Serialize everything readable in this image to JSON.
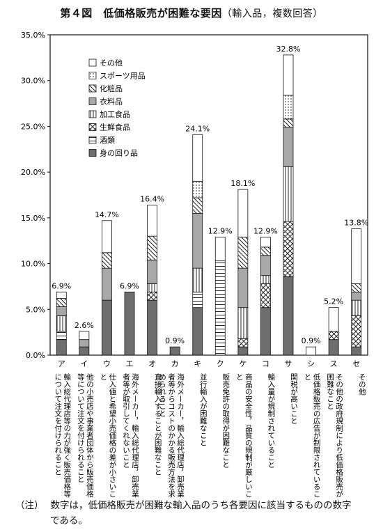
{
  "title": "第４図　低価格販売が困難な要因",
  "title_suffix": "（輸入品，複数回答）",
  "note": {
    "label": "（注）",
    "line1": "数字は，低価格販売が困難な輸入品のうち各要因に該当するものの数字",
    "line2": "である。"
  },
  "chart_data": {
    "type": "bar",
    "stacked": true,
    "title": "第４図　低価格販売が困難な要因（輸入品，複数回答）",
    "ylim": [
      0,
      35
    ],
    "yticks": [
      0,
      5,
      10,
      15,
      20,
      25,
      30,
      35
    ],
    "ytick_labels": [
      "0.0%",
      "5.0%",
      "10.0%",
      "15.0%",
      "20.0%",
      "25.0%",
      "30.0%",
      "35.0%"
    ],
    "grid": false,
    "legend_placement": "top-left",
    "categories": [
      "ア",
      "イ",
      "ウ",
      "エ",
      "オ",
      "カ",
      "キ",
      "ク",
      "ケ",
      "コ",
      "サ",
      "シ",
      "ス",
      "セ"
    ],
    "category_descriptions": [
      "輸入総代理店等の力が強く販売価格等について注文を付けられること",
      "他の小売店や事業者団体から販売価格等について注文を付けられること",
      "仕入値と希望小売価格の差が小さいこと",
      "海外メーカー，輸入総代理店，卸売業者等が取引してくれないこと",
      "直接輸入することが困難なこと",
      "海外メーカー，輸入総代理店，卸売業者等からコストのかかる販売方法を求められること",
      "並行輸入が困難なこと",
      "販売免許の取得が困難なこと",
      "商品の安全性，品質の規制が厳しいこと",
      "輸入量が規制されていること",
      "関税が高いこと",
      "低価格販売の広告が制限されていること",
      "その他の政府規制により低価格販売が困難なこと",
      "その他"
    ],
    "totals": [
      6.9,
      2.6,
      14.7,
      6.9,
      16.4,
      0.9,
      24.1,
      12.9,
      18.1,
      12.9,
      32.8,
      0.9,
      5.2,
      13.8
    ],
    "total_labels": [
      "6.9%",
      "2.6%",
      "14.7%",
      "6.9%",
      "16.4%",
      "0.9%",
      "24.1%",
      "12.9%",
      "18.1%",
      "12.9%",
      "32.8%",
      "0.9%",
      "5.2%",
      "13.8%"
    ],
    "series": [
      {
        "name": "身の回り品",
        "pattern": "dark",
        "values": [
          1.7,
          0.9,
          6.0,
          6.9,
          6.0,
          0.9,
          5.2,
          0,
          0.9,
          5.2,
          8.6,
          0,
          1.7,
          0.9
        ]
      },
      {
        "name": "酒類",
        "pattern": "hlines",
        "values": [
          0.9,
          0,
          0,
          0,
          0,
          0,
          1.7,
          10.3,
          0,
          0,
          0,
          0,
          0,
          0
        ]
      },
      {
        "name": "生鮮食品",
        "pattern": "cross",
        "values": [
          0,
          0,
          0,
          0,
          0.9,
          0,
          0,
          0,
          0.9,
          2.6,
          6.0,
          0,
          0.9,
          3.4
        ]
      },
      {
        "name": "加工食品",
        "pattern": "vlines",
        "values": [
          1.7,
          0,
          0,
          0,
          0.9,
          0,
          2.6,
          0,
          3.4,
          0.9,
          6.0,
          0,
          0,
          1.7
        ]
      },
      {
        "name": "衣料品",
        "pattern": "gray",
        "values": [
          1.0,
          0.8,
          3.5,
          0,
          2.6,
          0,
          6.0,
          0,
          4.3,
          2.2,
          4.3,
          0,
          0,
          0.9
        ]
      },
      {
        "name": "化粧品",
        "pattern": "diag",
        "values": [
          0.9,
          0,
          1.7,
          0,
          2.6,
          0,
          1.7,
          0,
          3.4,
          0.9,
          0.9,
          0,
          0,
          0.9
        ]
      },
      {
        "name": "スポーツ用品",
        "pattern": "dots",
        "values": [
          0,
          0,
          0,
          0,
          0,
          0,
          1.8,
          0,
          0,
          0,
          2.6,
          0,
          0,
          0
        ]
      },
      {
        "name": "その他",
        "pattern": "white",
        "values": [
          0.7,
          0.9,
          3.5,
          0,
          3.4,
          0,
          5.1,
          2.6,
          5.2,
          1.1,
          4.4,
          0.9,
          2.6,
          6.0
        ]
      }
    ]
  }
}
